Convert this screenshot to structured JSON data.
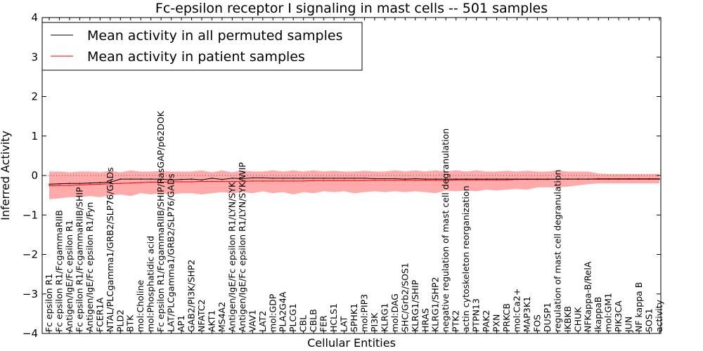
{
  "chart_data": {
    "type": "line",
    "title": "Fc-epsilon receptor I signaling in mast cells -- 501 samples",
    "xlabel": "Cellular Entities",
    "ylabel": "Inferred Activity",
    "ylim": [
      -4,
      4
    ],
    "yticks": [
      "4",
      "3",
      "2",
      "1",
      "0",
      "−1",
      "−2",
      "−3",
      "−4"
    ],
    "grid": false,
    "legend_position": "top-left",
    "reference_line": 0,
    "categories": [
      "Fc epsilon R1",
      "Fc epsilon R1/FcgammaRIIB",
      "Antigen/IgE/Fc epsilon R1",
      "Fc epsilon R1/FcgammaRIIB/SHIP",
      "Antigen/IgE/Fc epsilon R1/Fyn",
      "FCER1A",
      "NTAL/PLCgamma1/GRB2/SLP76/GADs",
      "PLD2",
      "BTK",
      "mol:Choline",
      "mol:Phosphatidic acid",
      "Fc epsilon R1/FcgammaRIIB/SHIP/RasGAP/p62DOK",
      "LAT/PLCgamma1/GRB2/SLP76/GADs",
      "AP1",
      "GAB2/PI3K/SHP2",
      "NFATC2",
      "AKT1",
      "MS4A2",
      "Antigen/IgE/Fc epsilon R1/LYN/SYK",
      "Antigen/IgE/Fc epsilon R1/LYN/SYK/WIP",
      "VAV1",
      "LAT2",
      "mol:GDP",
      "PLA2G4A",
      "PLCG1",
      "CBL",
      "CBLB",
      "FER",
      "HCLS1",
      "LAT",
      "SPHK1",
      "mol:PIP3",
      "PI3K",
      "KLRG1",
      "mol:DAG",
      "SHC/Grb2/SOS1",
      "KLRG1/SHIP",
      "HRAS",
      "KLRG1/SHP2",
      "negative regulation of mast cell degranulation",
      "PTK2",
      "actin cytoskeleton reorganization",
      "PTPN13",
      "PAK2",
      "PXN",
      "PRKCB",
      "mol:Ca2+",
      "MAP3K1",
      "FOS",
      "DUSP1",
      "regulation of mast cell degranulation",
      "IKBKB",
      "CHUK",
      "NFKappa-B/RelA",
      "IkappaB",
      "mol:GM1",
      "PIK3CA",
      "JUN",
      "NF kappa B",
      "SOS1",
      "activity"
    ],
    "series": [
      {
        "name": "Mean activity in all permuted samples",
        "color": "#000000",
        "values": [
          -0.22,
          -0.21,
          -0.2,
          -0.2,
          -0.19,
          -0.18,
          -0.17,
          -0.09,
          -0.09,
          -0.09,
          -0.09,
          -0.09,
          -0.11,
          -0.1,
          -0.09,
          -0.11,
          -0.07,
          -0.1,
          -0.07,
          -0.08,
          -0.06,
          -0.06,
          -0.07,
          -0.07,
          -0.07,
          -0.07,
          -0.07,
          -0.07,
          -0.07,
          -0.07,
          -0.07,
          -0.07,
          -0.08,
          -0.08,
          -0.08,
          -0.09,
          -0.08,
          -0.09,
          -0.09,
          -0.09,
          -0.09,
          -0.09,
          -0.09,
          -0.09,
          -0.09,
          -0.09,
          -0.09,
          -0.09,
          -0.09,
          -0.09,
          -0.09,
          -0.09,
          -0.09,
          -0.09,
          -0.09,
          -0.09,
          -0.09,
          -0.09,
          -0.09,
          -0.09,
          -0.09
        ]
      },
      {
        "name": "Mean activity in patient samples",
        "color": "#ff0000",
        "band_color": "#ffaaaa",
        "values": [
          -0.26,
          -0.25,
          -0.25,
          -0.24,
          -0.23,
          -0.22,
          -0.21,
          -0.2,
          -0.19,
          -0.18,
          -0.17,
          -0.17,
          -0.16,
          -0.16,
          -0.16,
          -0.15,
          -0.15,
          -0.15,
          -0.15,
          -0.15,
          -0.14,
          -0.14,
          -0.14,
          -0.14,
          -0.14,
          -0.14,
          -0.13,
          -0.13,
          -0.13,
          -0.13,
          -0.13,
          -0.13,
          -0.12,
          -0.12,
          -0.12,
          -0.12,
          -0.12,
          -0.12,
          -0.12,
          -0.12,
          -0.11,
          -0.11,
          -0.11,
          -0.11,
          -0.11,
          -0.11,
          -0.1,
          -0.1,
          -0.1,
          -0.1,
          -0.09,
          -0.09,
          -0.09,
          -0.09,
          -0.08,
          -0.08,
          -0.08,
          -0.08,
          -0.08,
          -0.08,
          -0.08
        ],
        "upper": [
          0.1,
          0.1,
          0.08,
          0.1,
          0.1,
          0.08,
          0.12,
          0.08,
          0.13,
          0.1,
          0.1,
          0.12,
          0.1,
          0.1,
          0.1,
          0.13,
          0.08,
          0.13,
          0.08,
          0.13,
          0.1,
          0.1,
          0.13,
          0.1,
          0.13,
          0.1,
          0.13,
          0.1,
          0.12,
          0.1,
          0.1,
          0.12,
          0.1,
          0.1,
          0.13,
          0.1,
          0.13,
          0.1,
          0.13,
          0.1,
          0.13,
          0.1,
          0.13,
          0.1,
          0.1,
          0.12,
          0.1,
          0.12,
          0.1,
          0.1,
          0.13,
          0.1,
          0.1,
          0.1,
          0.05,
          0.04,
          0.04,
          0.04,
          0.04,
          0.04,
          0.04
        ],
        "lower": [
          -0.6,
          -0.58,
          -0.55,
          -0.55,
          -0.52,
          -0.55,
          -0.5,
          -0.48,
          -0.52,
          -0.45,
          -0.48,
          -0.45,
          -0.48,
          -0.45,
          -0.45,
          -0.48,
          -0.45,
          -0.42,
          -0.45,
          -0.42,
          -0.45,
          -0.4,
          -0.45,
          -0.42,
          -0.48,
          -0.42,
          -0.45,
          -0.4,
          -0.42,
          -0.4,
          -0.45,
          -0.42,
          -0.4,
          -0.42,
          -0.4,
          -0.42,
          -0.4,
          -0.42,
          -0.45,
          -0.38,
          -0.4,
          -0.38,
          -0.4,
          -0.36,
          -0.38,
          -0.36,
          -0.34,
          -0.36,
          -0.3,
          -0.3,
          -0.3,
          -0.28,
          -0.25,
          -0.22,
          -0.2,
          -0.2,
          -0.2,
          -0.2,
          -0.2,
          -0.2,
          -0.2
        ]
      }
    ]
  }
}
